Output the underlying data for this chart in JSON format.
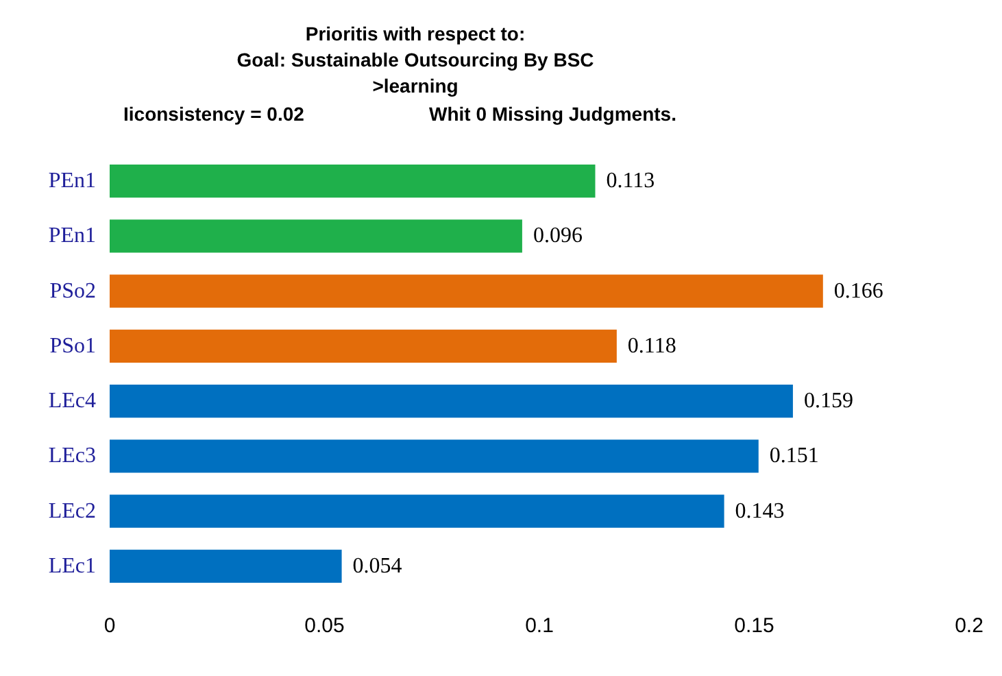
{
  "chart_data": {
    "type": "bar",
    "orientation": "horizontal",
    "title": "Prioritis with respect to:\nGoal: Sustainable Outsourcing By BSC\n>learning",
    "annotations": [
      "Iiconsistency = 0.02",
      "Whit 0 Missing Judgments."
    ],
    "categories": [
      "PEn1",
      "PEn1",
      "PSo2",
      "PSo1",
      "LEc4",
      "LEc3",
      "LEc2",
      "LEc1"
    ],
    "values": [
      0.113,
      0.096,
      0.166,
      0.118,
      0.159,
      0.151,
      0.143,
      0.054
    ],
    "colors": [
      "#1fb04b",
      "#1fb04b",
      "#e36c0a",
      "#e36c0a",
      "#0070c0",
      "#0070c0",
      "#0070c0",
      "#0070c0"
    ],
    "xlim": [
      0,
      0.2
    ],
    "xticks": [
      0,
      0.05,
      0.1,
      0.15,
      0.2
    ],
    "data_labels": true,
    "grid": false
  }
}
